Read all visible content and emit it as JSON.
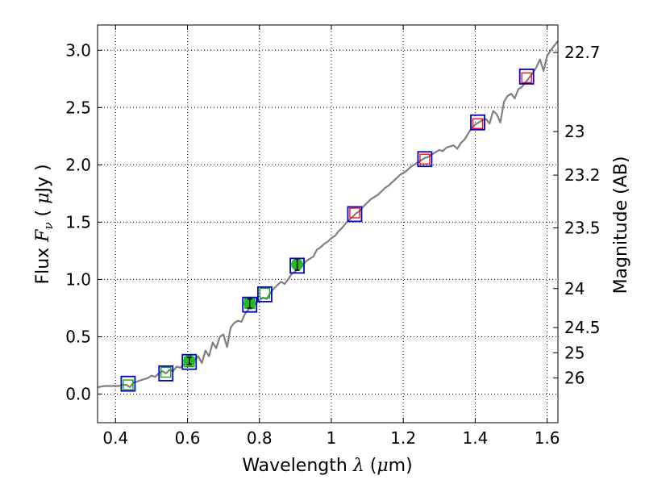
{
  "chart_data": {
    "type": "line",
    "xlabel": "Wavelength",
    "xlabel_symbol": "λ",
    "xlabel_unit_open": " (",
    "xlabel_unit_mu": "μ",
    "xlabel_unit_rest": "m)",
    "ylabel": "Flux",
    "ylabel_symbol": "F",
    "ylabel_symbol_sub": "ν",
    "ylabel_unit_open": " ( ",
    "ylabel_unit_mu": "μ",
    "ylabel_unit_rest": "Jy )",
    "y2label": "Magnitude (AB)",
    "xlim": [
      0.35,
      1.63
    ],
    "ylim": [
      -0.25,
      3.22
    ],
    "grid": true,
    "x_ticks": [
      {
        "value": 0.4,
        "label": "0.4"
      },
      {
        "value": 0.6,
        "label": "0.6"
      },
      {
        "value": 0.8,
        "label": "0.8"
      },
      {
        "value": 1.0,
        "label": "1"
      },
      {
        "value": 1.2,
        "label": "1.2"
      },
      {
        "value": 1.4,
        "label": "1.4"
      },
      {
        "value": 1.6,
        "label": "1.6"
      }
    ],
    "y_ticks": [
      {
        "value": 0.0,
        "label": "0.0"
      },
      {
        "value": 0.5,
        "label": "0.5"
      },
      {
        "value": 1.0,
        "label": "1.0"
      },
      {
        "value": 1.5,
        "label": "1.5"
      },
      {
        "value": 2.0,
        "label": "2.0"
      },
      {
        "value": 2.5,
        "label": "2.5"
      },
      {
        "value": 3.0,
        "label": "3.0"
      }
    ],
    "y2_ticks": [
      {
        "flux": 2.98,
        "label": "22.7"
      },
      {
        "flux": 2.29,
        "label": "23"
      },
      {
        "flux": 1.91,
        "label": "23.2"
      },
      {
        "flux": 1.45,
        "label": "23.5"
      },
      {
        "flux": 0.92,
        "label": "24"
      },
      {
        "flux": 0.58,
        "label": "24.5"
      },
      {
        "flux": 0.36,
        "label": "25"
      },
      {
        "flux": 0.14,
        "label": "26"
      }
    ],
    "series": [
      {
        "name": "model spectrum",
        "color": "#808080",
        "x": [
          0.35,
          0.37,
          0.39,
          0.41,
          0.42,
          0.43,
          0.44,
          0.45,
          0.46,
          0.47,
          0.48,
          0.49,
          0.5,
          0.51,
          0.52,
          0.53,
          0.54,
          0.55,
          0.56,
          0.57,
          0.58,
          0.59,
          0.6,
          0.61,
          0.62,
          0.63,
          0.64,
          0.65,
          0.66,
          0.67,
          0.68,
          0.69,
          0.7,
          0.71,
          0.72,
          0.73,
          0.74,
          0.75,
          0.76,
          0.77,
          0.78,
          0.79,
          0.8,
          0.81,
          0.82,
          0.83,
          0.84,
          0.85,
          0.86,
          0.87,
          0.88,
          0.89,
          0.9,
          0.91,
          0.92,
          0.93,
          0.94,
          0.95,
          0.96,
          0.97,
          0.98,
          0.99,
          1.0,
          1.01,
          1.02,
          1.03,
          1.04,
          1.05,
          1.06,
          1.07,
          1.08,
          1.09,
          1.1,
          1.11,
          1.12,
          1.13,
          1.14,
          1.15,
          1.16,
          1.17,
          1.18,
          1.19,
          1.2,
          1.21,
          1.22,
          1.23,
          1.24,
          1.25,
          1.26,
          1.27,
          1.28,
          1.29,
          1.3,
          1.31,
          1.32,
          1.33,
          1.34,
          1.35,
          1.36,
          1.37,
          1.38,
          1.39,
          1.4,
          1.41,
          1.42,
          1.43,
          1.44,
          1.45,
          1.46,
          1.47,
          1.48,
          1.49,
          1.5,
          1.51,
          1.52,
          1.53,
          1.54,
          1.55,
          1.56,
          1.57,
          1.58,
          1.59,
          1.6,
          1.61,
          1.62,
          1.63
        ],
        "y": [
          0.06,
          0.07,
          0.07,
          0.07,
          0.08,
          0.08,
          0.06,
          0.1,
          0.11,
          0.12,
          0.13,
          0.14,
          0.16,
          0.15,
          0.18,
          0.2,
          0.18,
          0.21,
          0.2,
          0.24,
          0.23,
          0.26,
          0.27,
          0.29,
          0.3,
          0.33,
          0.27,
          0.38,
          0.33,
          0.45,
          0.4,
          0.5,
          0.52,
          0.41,
          0.58,
          0.62,
          0.64,
          0.63,
          0.7,
          0.74,
          0.77,
          0.79,
          0.82,
          0.84,
          0.83,
          0.88,
          0.92,
          0.95,
          0.98,
          0.96,
          1.0,
          1.05,
          1.07,
          1.1,
          1.12,
          1.16,
          1.18,
          1.2,
          1.26,
          1.28,
          1.31,
          1.33,
          1.36,
          1.38,
          1.42,
          1.45,
          1.49,
          1.52,
          1.55,
          1.58,
          1.6,
          1.64,
          1.67,
          1.7,
          1.72,
          1.74,
          1.77,
          1.8,
          1.82,
          1.85,
          1.88,
          1.91,
          1.93,
          1.95,
          1.98,
          2.0,
          2.02,
          2.04,
          2.06,
          2.07,
          2.09,
          2.11,
          2.13,
          2.12,
          2.15,
          2.16,
          2.17,
          2.14,
          2.19,
          2.22,
          2.27,
          2.32,
          2.35,
          2.37,
          2.39,
          2.4,
          2.36,
          2.47,
          2.44,
          2.37,
          2.55,
          2.6,
          2.62,
          2.58,
          2.66,
          2.68,
          2.72,
          2.76,
          2.8,
          2.85,
          2.92,
          2.82,
          2.95,
          3.0,
          3.04,
          3.08
        ]
      }
    ],
    "blue_boxes": [
      {
        "x": 0.435,
        "y": 0.09
      },
      {
        "x": 0.54,
        "y": 0.18
      },
      {
        "x": 0.605,
        "y": 0.28
      },
      {
        "x": 0.773,
        "y": 0.78
      },
      {
        "x": 0.815,
        "y": 0.87
      },
      {
        "x": 0.905,
        "y": 1.12
      },
      {
        "x": 1.065,
        "y": 1.57
      },
      {
        "x": 1.26,
        "y": 2.05
      },
      {
        "x": 1.407,
        "y": 2.37
      },
      {
        "x": 1.543,
        "y": 2.77
      }
    ],
    "model_squares_green": [
      {
        "x": 0.435,
        "y": 0.08
      },
      {
        "x": 0.54,
        "y": 0.19
      },
      {
        "x": 0.605,
        "y": 0.28
      },
      {
        "x": 0.773,
        "y": 0.79
      },
      {
        "x": 0.815,
        "y": 0.88
      }
    ],
    "model_squares_red": [
      {
        "x": 1.065,
        "y": 1.58
      },
      {
        "x": 1.26,
        "y": 2.05
      },
      {
        "x": 1.407,
        "y": 2.36
      },
      {
        "x": 1.543,
        "y": 2.76
      }
    ],
    "observed_points": [
      {
        "x": 0.605,
        "y": 0.29,
        "err": 0.03
      },
      {
        "x": 0.773,
        "y": 0.79,
        "err": 0.04
      },
      {
        "x": 0.905,
        "y": 1.13,
        "err": 0.05
      }
    ],
    "colors": {
      "spectrum": "#808080",
      "box": "#0000cc",
      "model_green": "#00aa00",
      "model_red": "#ff0000",
      "observed": "#22bb22",
      "grid": "#000000"
    }
  }
}
